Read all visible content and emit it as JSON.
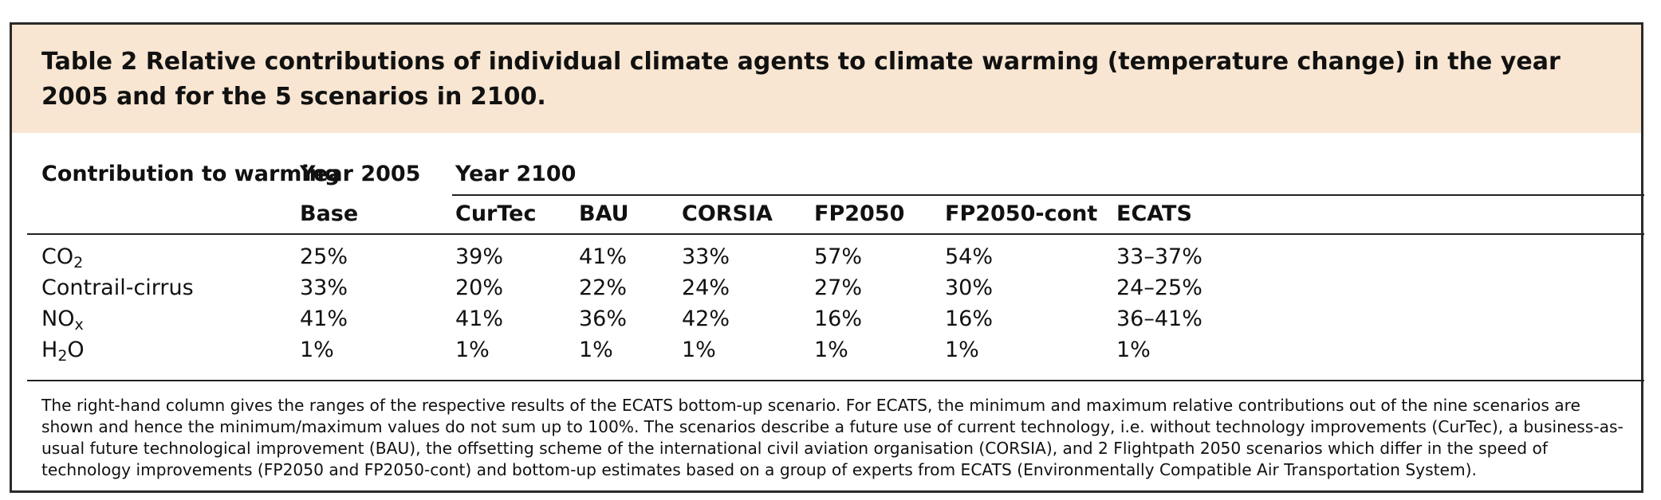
{
  "title": "Table 2 Relative contributions of individual climate agents to climate warming (temperature change) in the year 2005 and for the 5 scenarios in 2100.",
  "header": {
    "stub": "Contribution to warming",
    "group_2005": "Year 2005",
    "group_2100": "Year 2100",
    "columns": [
      "Base",
      "CurTec",
      "BAU",
      "CORSIA",
      "FP2050",
      "FP2050-cont",
      "ECATS"
    ]
  },
  "rows": [
    {
      "label_main": "CO",
      "label_sub": "2",
      "label_rest": "",
      "values": [
        "25%",
        "39%",
        "41%",
        "33%",
        "57%",
        "54%",
        "33–37%"
      ]
    },
    {
      "label_main": "Contrail-cirrus",
      "label_sub": "",
      "label_rest": "",
      "values": [
        "33%",
        "20%",
        "22%",
        "24%",
        "27%",
        "30%",
        "24–25%"
      ]
    },
    {
      "label_main": "NO",
      "label_sub": "x",
      "label_rest": "",
      "values": [
        "41%",
        "41%",
        "36%",
        "42%",
        "16%",
        "16%",
        "36–41%"
      ]
    },
    {
      "label_main": "H",
      "label_sub": "2",
      "label_rest": "O",
      "values": [
        "1%",
        "1%",
        "1%",
        "1%",
        "1%",
        "1%",
        "1%"
      ]
    }
  ],
  "note": "The right-hand column gives the ranges of the respective results of the ECATS bottom-up scenario. For ECATS, the minimum and maximum relative contributions out of the nine scenarios are shown and hence the minimum/maximum values do not sum up to 100%. The scenarios describe a future use of current technology, i.e. without technology improvements (CurTec), a business-as-usual future technological improvement (BAU), the offsetting scheme of the international civil aviation organisation (CORSIA), and 2 Flightpath 2050 scenarios which differ in the speed of technology improvements (FP2050 and FP2050-cont) and bottom-up estimates based on a group of experts from ECATS (Environmentally Compatible Air Transportation System)."
}
